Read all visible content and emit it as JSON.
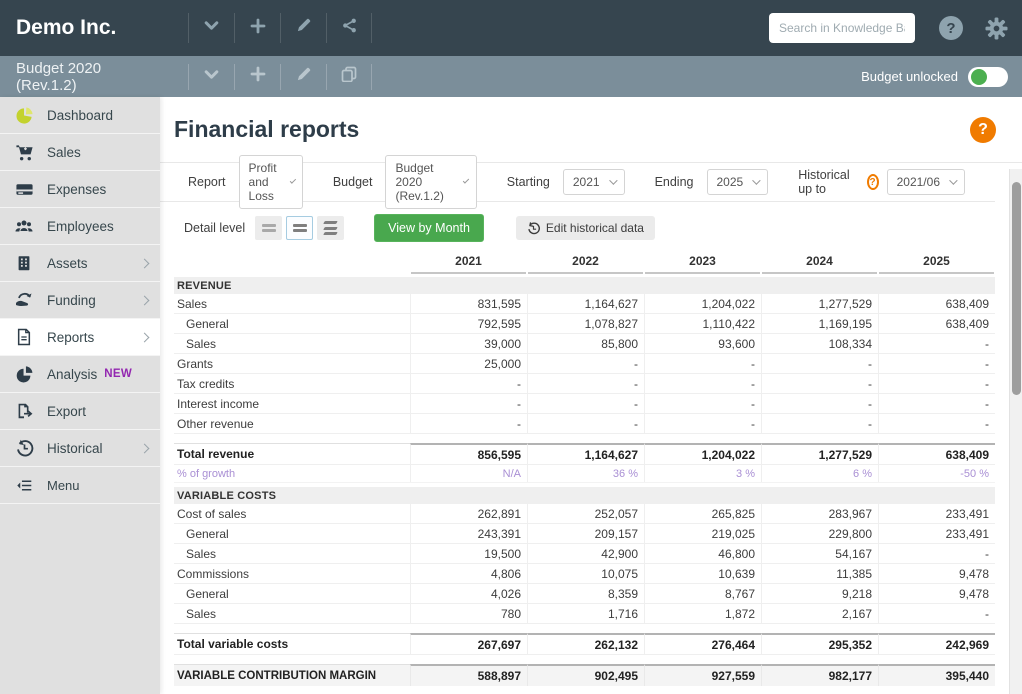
{
  "app": {
    "company": "Demo Inc.",
    "search_placeholder": "Search in Knowledge Base",
    "budget_title": "Budget 2020 (Rev.1.2)",
    "budget_status_label": "Budget unlocked"
  },
  "sidebar": {
    "items": [
      {
        "label": "Dashboard",
        "icon": "dashboard-pie",
        "chevron": false,
        "active": false
      },
      {
        "label": "Sales",
        "icon": "cart",
        "chevron": false,
        "active": false
      },
      {
        "label": "Expenses",
        "icon": "credit-card",
        "chevron": false,
        "active": false
      },
      {
        "label": "Employees",
        "icon": "people",
        "chevron": false,
        "active": false
      },
      {
        "label": "Assets",
        "icon": "building",
        "chevron": true,
        "active": false
      },
      {
        "label": "Funding",
        "icon": "funding",
        "chevron": true,
        "active": false
      },
      {
        "label": "Reports",
        "icon": "document",
        "chevron": true,
        "active": true
      },
      {
        "label": "Analysis",
        "icon": "analysis-pie",
        "chevron": false,
        "active": false,
        "badge": "NEW"
      },
      {
        "label": "Export",
        "icon": "export",
        "chevron": false,
        "active": false
      },
      {
        "label": "Historical",
        "icon": "history",
        "chevron": true,
        "active": false
      },
      {
        "label": "Menu",
        "icon": "collapse-menu",
        "chevron": false,
        "active": false,
        "small": true
      }
    ]
  },
  "page": {
    "title": "Financial reports",
    "filters": [
      {
        "label": "Report",
        "value": "Profit and Loss"
      },
      {
        "label": "Budget",
        "value": "Budget 2020 (Rev.1.2)"
      },
      {
        "label": "Starting",
        "value": "2021"
      },
      {
        "label": "Ending",
        "value": "2025"
      },
      {
        "label": "Historical up to",
        "value": "2021/06",
        "help": true
      }
    ],
    "toolbar": {
      "detail_level_label": "Detail level",
      "view_by_month_label": "View by Month",
      "edit_historical_label": "Edit historical data"
    }
  },
  "report": {
    "columns": [
      "2021",
      "2022",
      "2023",
      "2024",
      "2025"
    ],
    "rows": [
      {
        "type": "section",
        "label": "REVENUE"
      },
      {
        "type": "data",
        "label": "Sales",
        "values": [
          "831,595",
          "1,164,627",
          "1,204,022",
          "1,277,529",
          "638,409"
        ]
      },
      {
        "type": "sub",
        "label": "General",
        "values": [
          "792,595",
          "1,078,827",
          "1,110,422",
          "1,169,195",
          "638,409"
        ]
      },
      {
        "type": "sub",
        "label": "Sales",
        "values": [
          "39,000",
          "85,800",
          "93,600",
          "108,334",
          "-"
        ]
      },
      {
        "type": "data",
        "label": "Grants",
        "values": [
          "25,000",
          "-",
          "-",
          "-",
          "-"
        ]
      },
      {
        "type": "data",
        "label": "Tax credits",
        "values": [
          "-",
          "-",
          "-",
          "-",
          "-"
        ]
      },
      {
        "type": "data",
        "label": "Interest income",
        "values": [
          "-",
          "-",
          "-",
          "-",
          "-"
        ]
      },
      {
        "type": "data",
        "label": "Other revenue",
        "values": [
          "-",
          "-",
          "-",
          "-",
          "-"
        ]
      },
      {
        "type": "total",
        "label": "Total revenue",
        "values": [
          "856,595",
          "1,164,627",
          "1,204,022",
          "1,277,529",
          "638,409"
        ]
      },
      {
        "type": "growth",
        "label": "% of growth",
        "values": [
          "N/A",
          "36 %",
          "3 %",
          "6 %",
          "-50 %"
        ]
      },
      {
        "type": "section",
        "label": "VARIABLE COSTS"
      },
      {
        "type": "data",
        "label": "Cost of sales",
        "values": [
          "262,891",
          "252,057",
          "265,825",
          "283,967",
          "233,491"
        ]
      },
      {
        "type": "sub",
        "label": "General",
        "values": [
          "243,391",
          "209,157",
          "219,025",
          "229,800",
          "233,491"
        ]
      },
      {
        "type": "sub",
        "label": "Sales",
        "values": [
          "19,500",
          "42,900",
          "46,800",
          "54,167",
          "-"
        ]
      },
      {
        "type": "data",
        "label": "Commissions",
        "values": [
          "4,806",
          "10,075",
          "10,639",
          "11,385",
          "9,478"
        ]
      },
      {
        "type": "sub",
        "label": "General",
        "values": [
          "4,026",
          "8,359",
          "8,767",
          "9,218",
          "9,478"
        ]
      },
      {
        "type": "sub",
        "label": "Sales",
        "values": [
          "780",
          "1,716",
          "1,872",
          "2,167",
          "-"
        ]
      },
      {
        "type": "total",
        "label": "Total variable costs",
        "values": [
          "267,697",
          "262,132",
          "276,464",
          "295,352",
          "242,969"
        ]
      },
      {
        "type": "grand",
        "label": "VARIABLE CONTRIBUTION MARGIN",
        "values": [
          "588,897",
          "902,495",
          "927,559",
          "982,177",
          "395,440"
        ]
      }
    ]
  },
  "colors": {
    "topbar": "#36454f",
    "budgetbar": "#7b8e9a",
    "accent_orange": "#f07b00",
    "accent_green": "#49a84e",
    "badge_purple": "#9327b0",
    "growth_purple": "#a98fd4",
    "toggle_green": "#4caf50"
  }
}
